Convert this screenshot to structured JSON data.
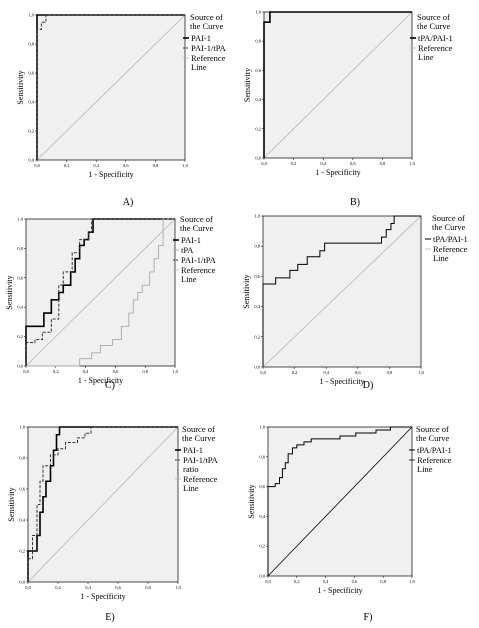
{
  "legend_title": "Source of the Curve",
  "axis": {
    "xlabel": "1 - Specificity",
    "ylabel": "Sensitivity"
  },
  "chart_data": [
    {
      "panel": "A)",
      "type": "line",
      "xlabel": "1 - Specificity",
      "ylabel": "Sensitivity",
      "xlim": [
        0,
        1
      ],
      "ylim": [
        0,
        1
      ],
      "grid": false,
      "legend": "right",
      "xticks": [
        "0,0",
        "0,2",
        "0,4",
        "0,6",
        "0,8",
        "1,0"
      ],
      "yticks": [
        "0,0",
        "0,2",
        "0,4",
        "0,6",
        "0,8",
        "1,0"
      ],
      "legend_entries": [
        "PAI-1",
        "PAI-1/tPA",
        "Reference Line"
      ],
      "series": [
        {
          "name": "PAI-1",
          "style": "solid-bold",
          "color": "#000000",
          "x": [
            0,
            0,
            0,
            1
          ],
          "y": [
            0,
            0.94,
            1,
            1
          ]
        },
        {
          "name": "PAI-1/tPA",
          "style": "dashed",
          "color": "#333333",
          "x": [
            0,
            0,
            0.03,
            0.03,
            0.06,
            0.06,
            1
          ],
          "y": [
            0,
            0.9,
            0.9,
            0.95,
            0.95,
            1,
            1
          ]
        },
        {
          "name": "Reference Line",
          "style": "reference",
          "color": "#b5b5b5",
          "x": [
            0,
            1
          ],
          "y": [
            0,
            1
          ]
        }
      ]
    },
    {
      "panel": "B)",
      "type": "line",
      "xlabel": "1 - Specificity",
      "ylabel": "Sensitivity",
      "xlim": [
        0,
        1
      ],
      "ylim": [
        0,
        1
      ],
      "grid": false,
      "legend": "right",
      "xticks": [
        "0,0",
        "0,2",
        "0,4",
        "0,6",
        "0,8",
        "1,0"
      ],
      "yticks": [
        "0,0",
        "0,2",
        "0,4",
        "0,6",
        "0,8",
        "1,0"
      ],
      "legend_entries": [
        "tPA/PAI-1",
        "Reference Line"
      ],
      "series": [
        {
          "name": "tPA/PAI-1",
          "style": "solid-bold",
          "color": "#000000",
          "x": [
            0,
            0,
            0.04,
            0.04,
            1
          ],
          "y": [
            0,
            0.93,
            0.93,
            1,
            1
          ]
        },
        {
          "name": "Reference Line",
          "style": "reference",
          "color": "#b5b5b5",
          "x": [
            0,
            1
          ],
          "y": [
            0,
            1
          ]
        }
      ]
    },
    {
      "panel": "C)",
      "type": "line",
      "xlabel": "1 - Specificity",
      "ylabel": "Sensitivity",
      "xlim": [
        0,
        1
      ],
      "ylim": [
        0,
        1
      ],
      "grid": false,
      "legend": "right",
      "xticks": [
        "0,0",
        "0,2",
        "0,4",
        "0,6",
        "0,8",
        "1,0"
      ],
      "yticks": [
        "0,0",
        "0,2",
        "0,4",
        "0,6",
        "0,8",
        "1,0"
      ],
      "legend_entries": [
        "PAI-1",
        "tPA",
        "PAI-1/tPA",
        "Reference Line"
      ],
      "series": [
        {
          "name": "PAI-1",
          "style": "solid-bold",
          "color": "#000000",
          "x": [
            0,
            0,
            0.12,
            0.12,
            0.17,
            0.17,
            0.22,
            0.22,
            0.25,
            0.25,
            0.3,
            0.3,
            0.33,
            0.33,
            0.36,
            0.36,
            0.39,
            0.39,
            0.42,
            0.42,
            0.45,
            0.45,
            1
          ],
          "y": [
            0,
            0.27,
            0.27,
            0.36,
            0.36,
            0.45,
            0.45,
            0.5,
            0.5,
            0.55,
            0.55,
            0.64,
            0.64,
            0.73,
            0.73,
            0.82,
            0.82,
            0.86,
            0.86,
            0.91,
            0.91,
            1,
            1
          ]
        },
        {
          "name": "tPA",
          "style": "solid-light",
          "color": "#a9a9a9",
          "x": [
            0,
            0.36,
            0.36,
            0.44,
            0.44,
            0.5,
            0.5,
            0.58,
            0.58,
            0.64,
            0.64,
            0.69,
            0.69,
            0.72,
            0.72,
            0.75,
            0.75,
            0.78,
            0.78,
            0.83,
            0.83,
            0.86,
            0.86,
            0.89,
            0.89,
            0.92,
            0.92,
            1
          ],
          "y": [
            0,
            0,
            0.05,
            0.05,
            0.09,
            0.09,
            0.14,
            0.14,
            0.18,
            0.18,
            0.27,
            0.27,
            0.36,
            0.36,
            0.45,
            0.45,
            0.5,
            0.5,
            0.55,
            0.55,
            0.64,
            0.64,
            0.73,
            0.73,
            0.82,
            0.82,
            1,
            1
          ]
        },
        {
          "name": "PAI-1/tPA",
          "style": "dashed",
          "color": "#333333",
          "x": [
            0,
            0,
            0.06,
            0.06,
            0.11,
            0.11,
            0.17,
            0.17,
            0.22,
            0.22,
            0.25,
            0.25,
            0.31,
            0.31,
            0.36,
            0.36,
            0.42,
            0.42,
            0.44,
            0.44,
            1
          ],
          "y": [
            0,
            0.16,
            0.16,
            0.18,
            0.18,
            0.23,
            0.23,
            0.32,
            0.32,
            0.55,
            0.55,
            0.64,
            0.64,
            0.77,
            0.77,
            0.86,
            0.86,
            0.91,
            0.91,
            1,
            1
          ]
        },
        {
          "name": "Reference Line",
          "style": "reference",
          "color": "#b5b5b5",
          "x": [
            0,
            1
          ],
          "y": [
            0,
            1
          ]
        }
      ]
    },
    {
      "panel": "D)",
      "type": "line",
      "xlabel": "1 - Specificity",
      "ylabel": "Sensitivity",
      "xlim": [
        0,
        1
      ],
      "ylim": [
        0,
        1
      ],
      "grid": false,
      "legend": "right",
      "xticks": [
        "0,0",
        "0,2",
        "0,4",
        "0,6",
        "0,8",
        "1,0"
      ],
      "yticks": [
        "0,0",
        "0,2",
        "0,4",
        "0,6",
        "0,8",
        "1,0"
      ],
      "legend_entries": [
        "tPA/PAI-1",
        "Reference Line"
      ],
      "series": [
        {
          "name": "tPA/PAI-1",
          "style": "solid",
          "color": "#000000",
          "x": [
            0,
            0,
            0.08,
            0.08,
            0.17,
            0.17,
            0.22,
            0.22,
            0.28,
            0.28,
            0.36,
            0.36,
            0.39,
            0.39,
            0.47,
            0.47,
            0.75,
            0.75,
            0.78,
            0.78,
            0.81,
            0.81,
            0.83,
            0.83,
            1
          ],
          "y": [
            0,
            0.55,
            0.55,
            0.59,
            0.59,
            0.64,
            0.64,
            0.68,
            0.68,
            0.73,
            0.73,
            0.77,
            0.77,
            0.82,
            0.82,
            0.82,
            0.82,
            0.86,
            0.86,
            0.91,
            0.91,
            0.95,
            0.95,
            1,
            1
          ]
        },
        {
          "name": "Reference Line",
          "style": "reference",
          "color": "#b5b5b5",
          "x": [
            0,
            1
          ],
          "y": [
            0,
            1
          ]
        }
      ]
    },
    {
      "panel": "E)",
      "type": "line",
      "xlabel": "1 - Specificity",
      "ylabel": "Sensitivity",
      "xlim": [
        0,
        1
      ],
      "ylim": [
        0,
        1
      ],
      "grid": false,
      "legend": "right",
      "xticks": [
        "0,0",
        "0,2",
        "0,4",
        "0,6",
        "0,8",
        "1,0"
      ],
      "yticks": [
        "0,0",
        "0,2",
        "0,4",
        "0,6",
        "0,8",
        "1,0"
      ],
      "legend_entries": [
        "PAI-1",
        "PAI-1/tPA ratio",
        "Reference Line"
      ],
      "series": [
        {
          "name": "PAI-1",
          "style": "solid-bold",
          "color": "#000000",
          "x": [
            0,
            0,
            0.06,
            0.06,
            0.08,
            0.08,
            0.1,
            0.1,
            0.12,
            0.12,
            0.15,
            0.15,
            0.17,
            0.17,
            0.19,
            0.19,
            0.21,
            0.21,
            1
          ],
          "y": [
            0,
            0.2,
            0.2,
            0.3,
            0.3,
            0.45,
            0.45,
            0.55,
            0.55,
            0.65,
            0.65,
            0.75,
            0.75,
            0.85,
            0.85,
            0.95,
            0.95,
            1,
            1
          ]
        },
        {
          "name": "PAI-1/tPA ratio",
          "style": "dashed",
          "color": "#333333",
          "x": [
            0,
            0,
            0.03,
            0.03,
            0.06,
            0.06,
            0.08,
            0.08,
            0.1,
            0.1,
            0.15,
            0.15,
            0.2,
            0.2,
            0.25,
            0.25,
            0.33,
            0.33,
            0.38,
            0.38,
            0.42,
            0.42,
            1
          ],
          "y": [
            0,
            0.15,
            0.15,
            0.3,
            0.3,
            0.5,
            0.5,
            0.65,
            0.65,
            0.75,
            0.75,
            0.82,
            0.82,
            0.86,
            0.86,
            0.9,
            0.9,
            0.93,
            0.93,
            0.96,
            0.96,
            1,
            1
          ]
        },
        {
          "name": "Reference Line",
          "style": "reference",
          "color": "#b5b5b5",
          "x": [
            0,
            1
          ],
          "y": [
            0,
            1
          ]
        }
      ]
    },
    {
      "panel": "F)",
      "type": "line",
      "xlabel": "1 - Specificity",
      "ylabel": "Sensitivity",
      "xlim": [
        0,
        1
      ],
      "ylim": [
        0,
        1
      ],
      "grid": false,
      "legend": "right",
      "xticks": [
        "0,0",
        "0,2",
        "0,4",
        "0,6",
        "0,8",
        "1,0"
      ],
      "yticks": [
        "0,0",
        "0,2",
        "0,4",
        "0,6",
        "0,8",
        "1,0"
      ],
      "legend_entries": [
        "tPA/PAI-1",
        "Reference Line"
      ],
      "series": [
        {
          "name": "tPA/PAI-1",
          "style": "solid",
          "color": "#000000",
          "x": [
            0,
            0,
            0.05,
            0.05,
            0.08,
            0.08,
            0.1,
            0.1,
            0.12,
            0.12,
            0.14,
            0.14,
            0.17,
            0.17,
            0.2,
            0.2,
            0.25,
            0.25,
            0.3,
            0.3,
            0.44,
            0.44,
            0.5,
            0.5,
            0.61,
            0.61,
            0.75,
            0.75,
            0.85,
            0.85,
            1
          ],
          "y": [
            0,
            0.6,
            0.6,
            0.62,
            0.62,
            0.66,
            0.66,
            0.72,
            0.72,
            0.76,
            0.76,
            0.82,
            0.82,
            0.86,
            0.86,
            0.88,
            0.88,
            0.9,
            0.9,
            0.92,
            0.92,
            0.92,
            0.92,
            0.94,
            0.94,
            0.96,
            0.96,
            0.98,
            0.98,
            1,
            1
          ]
        },
        {
          "name": "Reference Line",
          "style": "reference",
          "color": "#000000",
          "x": [
            0,
            1
          ],
          "y": [
            0,
            1
          ]
        }
      ]
    }
  ]
}
